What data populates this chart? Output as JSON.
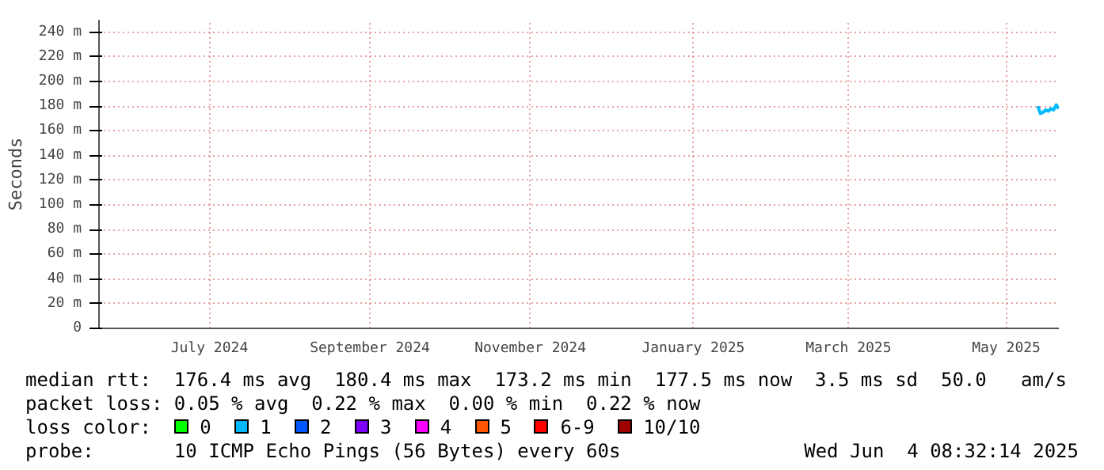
{
  "chart_data": {
    "type": "line",
    "ylabel": "Seconds",
    "x": [
      "2025-05-27",
      "2025-05-28",
      "2025-05-29",
      "2025-05-30",
      "2025-05-31",
      "2025-06-01",
      "2025-06-02",
      "2025-06-03",
      "2025-06-04"
    ],
    "series": [
      {
        "color": "#00b8ff",
        "values": [
          180,
          174,
          175,
          177,
          176,
          178,
          177,
          181,
          178
        ]
      }
    ],
    "xlim": [
      "2024-06-04",
      "2025-06-04"
    ],
    "xticks": [
      {
        "value": "2024-07-16",
        "label": "July 2024"
      },
      {
        "value": "2024-09-15",
        "label": "September 2024"
      },
      {
        "value": "2024-11-15",
        "label": "November 2024"
      },
      {
        "value": "2025-01-16",
        "label": "January 2025"
      },
      {
        "value": "2025-03-16",
        "label": "March 2025"
      },
      {
        "value": "2025-05-15",
        "label": "May 2025"
      }
    ],
    "ylim": [
      0,
      250
    ],
    "yticks": [
      0,
      {
        "value": 20,
        "label": "20 m"
      },
      {
        "value": 40,
        "label": "40 m"
      },
      {
        "value": 60,
        "label": "60 m"
      },
      {
        "value": 80,
        "label": "80 m"
      },
      {
        "value": 100,
        "label": "100 m"
      },
      {
        "value": 120,
        "label": "120 m"
      },
      {
        "value": 140,
        "label": "140 m"
      },
      {
        "value": 160,
        "label": "160 m"
      },
      {
        "value": 180,
        "label": "180 m"
      },
      {
        "value": 200,
        "label": "200 m"
      },
      {
        "value": 220,
        "label": "220 m"
      },
      {
        "value": 240,
        "label": "240 m"
      }
    ],
    "grid": true,
    "annotations": [
      "median rtt:  176.4 ms avg  180.4 ms max  173.2 ms min  177.5 ms now  3.5 ms sd  50.0   am/s",
      "packet loss: 0.05 % avg  0.22 % max  0.00 % min  0.22 % now",
      "loss color:",
      "0",
      "1",
      "2",
      "3",
      "4",
      "5",
      "6-9",
      "10/10",
      "probe:       10 ICMP Echo Pings (56 Bytes) every 60s",
      "Wed Jun  4 08:32:14 2025"
    ]
  }
}
